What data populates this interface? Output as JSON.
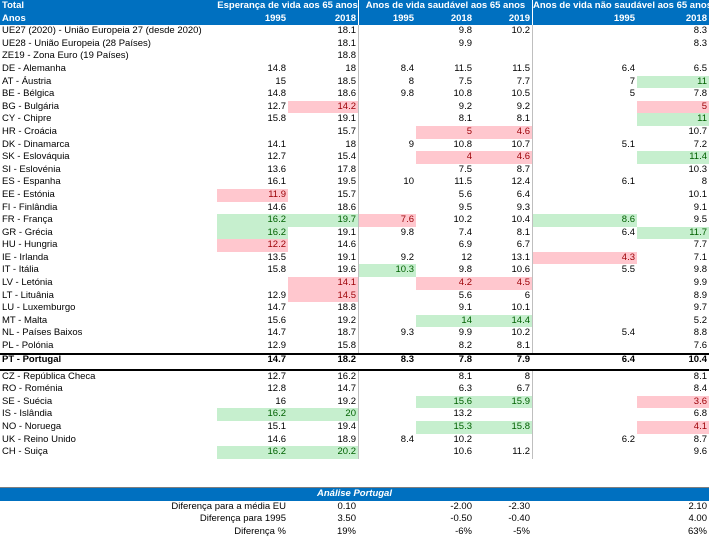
{
  "header": {
    "total_label": "Total",
    "years_label": "Anos",
    "group1": "Esperança de vida aos 65 anos",
    "group2": "Anos de vida saudável aos 65 anos",
    "group3": "Anos de vida não saudável aos 65 anos",
    "years": [
      "1995",
      "2018",
      "1995",
      "2018",
      "2019",
      "1995",
      "2018"
    ]
  },
  "rows": [
    {
      "name": "UE27 (2020) - União Europeia 27 (desde 2020)",
      "v": [
        "",
        "18.1",
        "",
        "9.8",
        "10.2",
        "",
        "8.3"
      ],
      "h": [
        "",
        "",
        "",
        "",
        "",
        "",
        ""
      ]
    },
    {
      "name": "UE28 - União Europeia (28 Países)",
      "v": [
        "",
        "18.1",
        "",
        "9.9",
        "",
        "",
        "8.3"
      ],
      "h": [
        "",
        "",
        "",
        "",
        "",
        "",
        ""
      ]
    },
    {
      "name": "ZE19 - Zona Euro (19 Países)",
      "v": [
        "",
        "18.8",
        "",
        "",
        "",
        "",
        ""
      ],
      "h": [
        "",
        "",
        "",
        "",
        "",
        "",
        ""
      ]
    },
    {
      "name": "DE - Alemanha",
      "v": [
        "14.8",
        "18",
        "8.4",
        "11.5",
        "11.5",
        "6.4",
        "6.5"
      ],
      "h": [
        "",
        "",
        "",
        "",
        "",
        "",
        ""
      ]
    },
    {
      "name": "AT - Áustria",
      "v": [
        "15",
        "18.5",
        "8",
        "7.5",
        "7.7",
        "7",
        "11"
      ],
      "h": [
        "",
        "",
        "",
        "",
        "",
        "",
        "green"
      ]
    },
    {
      "name": "BE - Bélgica",
      "v": [
        "14.8",
        "18.6",
        "9.8",
        "10.8",
        "10.5",
        "5",
        "7.8"
      ],
      "h": [
        "",
        "",
        "",
        "",
        "",
        "",
        ""
      ]
    },
    {
      "name": "BG - Bulgária",
      "v": [
        "12.7",
        "14.2",
        "",
        "9.2",
        "9.2",
        "",
        "5"
      ],
      "h": [
        "",
        "red",
        "",
        "",
        "",
        "",
        "red"
      ]
    },
    {
      "name": "CY - Chipre",
      "v": [
        "15.8",
        "19.1",
        "",
        "8.1",
        "8.1",
        "",
        "11"
      ],
      "h": [
        "",
        "",
        "",
        "",
        "",
        "",
        "green"
      ]
    },
    {
      "name": "HR - Croácia",
      "v": [
        "",
        "15.7",
        "",
        "5",
        "4.6",
        "",
        "10.7"
      ],
      "h": [
        "",
        "",
        "",
        "red",
        "red",
        "",
        ""
      ]
    },
    {
      "name": "DK - Dinamarca",
      "v": [
        "14.1",
        "18",
        "9",
        "10.8",
        "10.7",
        "5.1",
        "7.2"
      ],
      "h": [
        "",
        "",
        "",
        "",
        "",
        "",
        ""
      ]
    },
    {
      "name": "SK - Eslováquia",
      "v": [
        "12.7",
        "15.4",
        "",
        "4",
        "4.6",
        "",
        "11.4"
      ],
      "h": [
        "",
        "",
        "",
        "red",
        "red",
        "",
        "green"
      ]
    },
    {
      "name": "SI - Eslovénia",
      "v": [
        "13.6",
        "17.8",
        "",
        "7.5",
        "8.7",
        "",
        "10.3"
      ],
      "h": [
        "",
        "",
        "",
        "",
        "",
        "",
        ""
      ]
    },
    {
      "name": "ES - Espanha",
      "v": [
        "16.1",
        "19.5",
        "10",
        "11.5",
        "12.4",
        "6.1",
        "8"
      ],
      "h": [
        "",
        "",
        "",
        "",
        "",
        "",
        ""
      ]
    },
    {
      "name": "EE - Estónia",
      "v": [
        "11.9",
        "15.7",
        "",
        "5.6",
        "6.4",
        "",
        "10.1"
      ],
      "h": [
        "red",
        "",
        "",
        "",
        "",
        "",
        ""
      ]
    },
    {
      "name": "FI - Finlândia",
      "v": [
        "14.6",
        "18.6",
        "",
        "9.5",
        "9.3",
        "",
        "9.1"
      ],
      "h": [
        "",
        "",
        "",
        "",
        "",
        "",
        ""
      ]
    },
    {
      "name": "FR - França",
      "v": [
        "16.2",
        "19.7",
        "7.6",
        "10.2",
        "10.4",
        "8.6",
        "9.5"
      ],
      "h": [
        "green",
        "green",
        "red",
        "",
        "",
        "green",
        ""
      ]
    },
    {
      "name": "GR - Grécia",
      "v": [
        "16.2",
        "19.1",
        "9.8",
        "7.4",
        "8.1",
        "6.4",
        "11.7"
      ],
      "h": [
        "green",
        "",
        "",
        "",
        "",
        "",
        "green"
      ]
    },
    {
      "name": "HU - Hungria",
      "v": [
        "12.2",
        "14.6",
        "",
        "6.9",
        "6.7",
        "",
        "7.7"
      ],
      "h": [
        "red",
        "",
        "",
        "",
        "",
        "",
        ""
      ]
    },
    {
      "name": "IE - Irlanda",
      "v": [
        "13.5",
        "19.1",
        "9.2",
        "12",
        "13.1",
        "4.3",
        "7.1"
      ],
      "h": [
        "",
        "",
        "",
        "",
        "",
        "red",
        ""
      ]
    },
    {
      "name": "IT - Itália",
      "v": [
        "15.8",
        "19.6",
        "10.3",
        "9.8",
        "10.6",
        "5.5",
        "9.8"
      ],
      "h": [
        "",
        "",
        "green",
        "",
        "",
        "",
        ""
      ]
    },
    {
      "name": "LV - Letónia",
      "v": [
        "",
        "14.1",
        "",
        "4.2",
        "4.5",
        "",
        "9.9"
      ],
      "h": [
        "",
        "red",
        "",
        "red",
        "red",
        "",
        ""
      ]
    },
    {
      "name": "LT - Lituânia",
      "v": [
        "12.9",
        "14.5",
        "",
        "5.6",
        "6",
        "",
        "8.9"
      ],
      "h": [
        "",
        "red",
        "",
        "",
        "",
        "",
        ""
      ]
    },
    {
      "name": "LU - Luxemburgo",
      "v": [
        "14.7",
        "18.8",
        "",
        "9.1",
        "10.1",
        "",
        "9.7"
      ],
      "h": [
        "",
        "",
        "",
        "",
        "",
        "",
        ""
      ]
    },
    {
      "name": "MT - Malta",
      "v": [
        "15.6",
        "19.2",
        "",
        "14",
        "14.4",
        "",
        "5.2"
      ],
      "h": [
        "",
        "",
        "",
        "green",
        "green",
        "",
        ""
      ]
    },
    {
      "name": "NL - Países Baixos",
      "v": [
        "14.7",
        "18.7",
        "9.3",
        "9.9",
        "10.2",
        "5.4",
        "8.8"
      ],
      "h": [
        "",
        "",
        "",
        "",
        "",
        "",
        ""
      ]
    },
    {
      "name": "PL - Polónia",
      "v": [
        "12.9",
        "15.8",
        "",
        "8.2",
        "8.1",
        "",
        "7.6"
      ],
      "h": [
        "",
        "",
        "",
        "",
        "",
        "",
        ""
      ]
    }
  ],
  "portugal": {
    "name": "PT - Portugal",
    "v": [
      "14.7",
      "18.2",
      "8.3",
      "7.8",
      "7.9",
      "6.4",
      "10.4"
    ]
  },
  "rows2": [
    {
      "name": "CZ - República Checa",
      "v": [
        "12.7",
        "16.2",
        "",
        "8.1",
        "8",
        "",
        "8.1"
      ],
      "h": [
        "",
        "",
        "",
        "",
        "",
        "",
        ""
      ]
    },
    {
      "name": "RO - Roménia",
      "v": [
        "12.8",
        "14.7",
        "",
        "6.3",
        "6.7",
        "",
        "8.4"
      ],
      "h": [
        "",
        "",
        "",
        "",
        "",
        "",
        ""
      ]
    },
    {
      "name": "SE - Suécia",
      "v": [
        "16",
        "19.2",
        "",
        "15.6",
        "15.9",
        "",
        "3.6"
      ],
      "h": [
        "",
        "",
        "",
        "green",
        "green",
        "",
        "red"
      ]
    },
    {
      "name": "IS - Islândia",
      "v": [
        "16.2",
        "20",
        "",
        "13.2",
        "",
        "",
        "6.8"
      ],
      "h": [
        "green",
        "green",
        "",
        "",
        "",
        "",
        ""
      ]
    },
    {
      "name": "NO - Noruega",
      "v": [
        "15.1",
        "19.4",
        "",
        "15.3",
        "15.8",
        "",
        "4.1"
      ],
      "h": [
        "",
        "",
        "",
        "green",
        "green",
        "",
        "red"
      ]
    },
    {
      "name": "UK - Reino Unido",
      "v": [
        "14.6",
        "18.9",
        "8.4",
        "10.2",
        "",
        "6.2",
        "8.7"
      ],
      "h": [
        "",
        "",
        "",
        "",
        "",
        "",
        ""
      ]
    },
    {
      "name": "CH - Suiça",
      "v": [
        "16.2",
        "20.2",
        "",
        "10.6",
        "11.2",
        "",
        "9.6"
      ],
      "h": [
        "green",
        "green",
        "",
        "",
        "",
        "",
        ""
      ]
    }
  ],
  "analysis": {
    "title": "Análise Portugal",
    "rows": [
      {
        "label": "Diferença para a média EU",
        "a": "0.10",
        "b": "-2.00",
        "c": "-2.30",
        "d": "2.10"
      },
      {
        "label": "Diferença para 1995",
        "a": "3.50",
        "b": "-0.50",
        "c": "-0.40",
        "d": "4.00"
      },
      {
        "label": "Diferença %",
        "a": "19%",
        "b": "-6%",
        "c": "-5%",
        "d": "63%"
      }
    ]
  },
  "colors": {
    "header_blue": "#0070c0",
    "highlight_red": "#ffc7ce",
    "highlight_green": "#c6efce"
  }
}
